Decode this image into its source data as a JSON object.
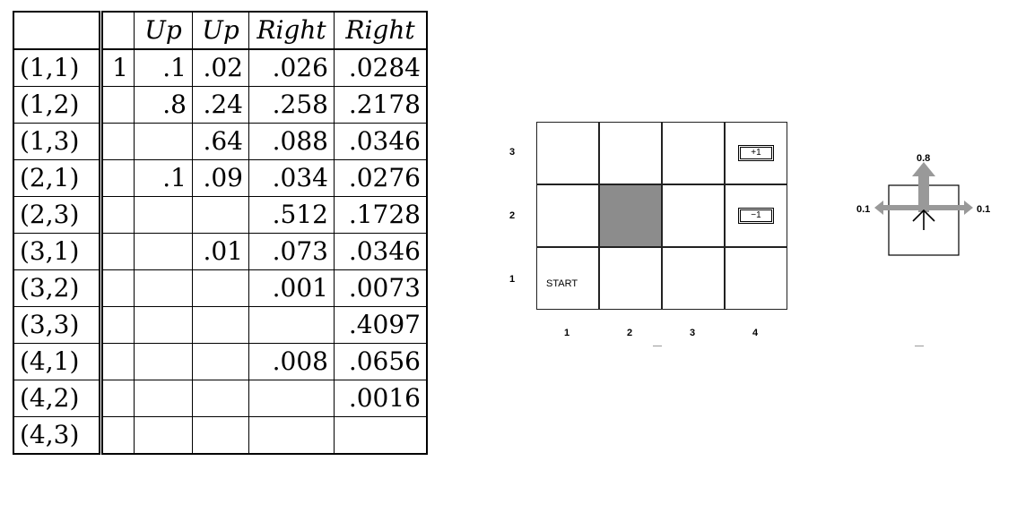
{
  "table": {
    "headers": [
      "",
      "",
      "Up",
      "Up",
      "Right",
      "Right"
    ],
    "rows": [
      {
        "state": "(1,1)",
        "values": [
          "1",
          ".1",
          ".02",
          ".026",
          ".0284"
        ]
      },
      {
        "state": "(1,2)",
        "values": [
          "",
          ".8",
          ".24",
          ".258",
          ".2178"
        ]
      },
      {
        "state": "(1,3)",
        "values": [
          "",
          "",
          ".64",
          ".088",
          ".0346"
        ]
      },
      {
        "state": "(2,1)",
        "values": [
          "",
          ".1",
          ".09",
          ".034",
          ".0276"
        ]
      },
      {
        "state": "(2,3)",
        "values": [
          "",
          "",
          "",
          ".512",
          ".1728"
        ]
      },
      {
        "state": "(3,1)",
        "values": [
          "",
          "",
          ".01",
          ".073",
          ".0346"
        ]
      },
      {
        "state": "(3,2)",
        "values": [
          "",
          "",
          "",
          ".001",
          ".0073"
        ]
      },
      {
        "state": "(3,3)",
        "values": [
          "",
          "",
          "",
          "",
          ".4097"
        ]
      },
      {
        "state": "(4,1)",
        "values": [
          "",
          "",
          "",
          ".008",
          ".0656"
        ]
      },
      {
        "state": "(4,2)",
        "values": [
          "",
          "",
          "",
          "",
          ".0016"
        ]
      },
      {
        "state": "(4,3)",
        "values": [
          "",
          "",
          "",
          "",
          ""
        ]
      }
    ]
  },
  "grid": {
    "rows": [
      "3",
      "2",
      "1"
    ],
    "cols": [
      "1",
      "2",
      "3",
      "4"
    ],
    "start_label": "START",
    "plus_reward": "+1",
    "minus_reward": "−1",
    "blocked_color": "#8c8c8c"
  },
  "transition": {
    "forward_prob": "0.8",
    "left_prob": "0.1",
    "right_prob": "0.1",
    "arrow_color": "#999999"
  }
}
